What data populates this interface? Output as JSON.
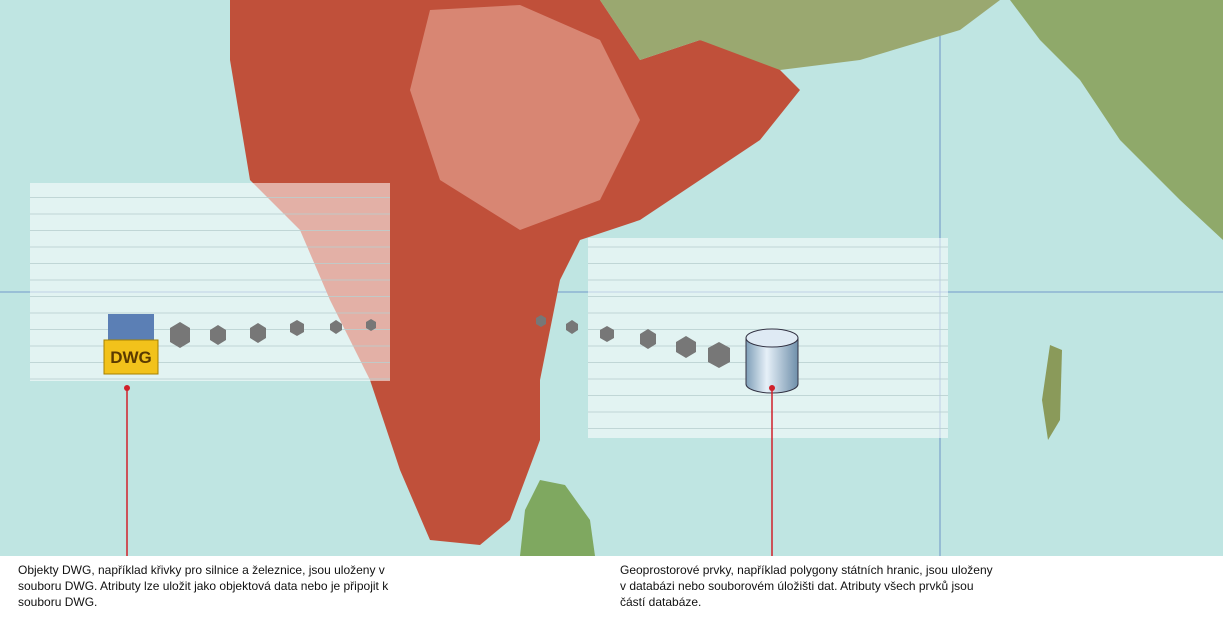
{
  "dwg_callout": {
    "icon_label": "DWG",
    "caption": "Objekty DWG, například křivky pro silnice a železnice, jsou uloženy v souboru DWG. Atributy lze uložit jako objektová data nebo je připojit k souboru DWG."
  },
  "database_callout": {
    "caption": "Geoprostorové prvky, například polygony státních hranic, jsou uloženy v databázi nebo souborovém úložišti dat. Atributy všech prvků jsou částí databáze."
  }
}
